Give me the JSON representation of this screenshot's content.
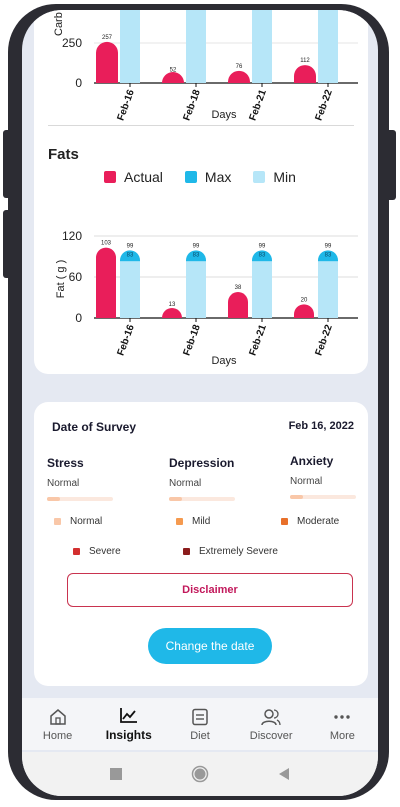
{
  "carb_chart": {
    "ylabel": "Carb ( g )",
    "xlabel": "Days",
    "yticks": [
      "250",
      "0"
    ],
    "categories": [
      "Feb-16",
      "Feb-18",
      "Feb-21",
      "Feb-22"
    ],
    "actual": [
      257,
      52,
      76,
      112
    ],
    "actual_labels": [
      "257",
      "52",
      "76",
      "112"
    ]
  },
  "fats": {
    "title": "Fats",
    "legend": {
      "actual": "Actual",
      "max": "Max",
      "min": "Min"
    },
    "colors": {
      "actual": "#e91e5a",
      "max": "#1fb8e8",
      "min": "#b6e6f8"
    }
  },
  "chart_data": [
    {
      "type": "bar",
      "title": "",
      "xlabel": "Days",
      "ylabel": "Carb ( g )",
      "categories": [
        "Feb-16",
        "Feb-18",
        "Feb-21",
        "Feb-22"
      ],
      "series": [
        {
          "name": "Actual",
          "values": [
            257,
            52,
            76,
            112
          ]
        }
      ]
    },
    {
      "type": "bar",
      "title": "Fats",
      "xlabel": "Days",
      "ylabel": "Fat ( g )",
      "ylim": [
        0,
        120
      ],
      "categories": [
        "Feb-16",
        "Feb-18",
        "Feb-21",
        "Feb-22"
      ],
      "series": [
        {
          "name": "Actual",
          "values": [
            103,
            13,
            38,
            20
          ]
        },
        {
          "name": "Max",
          "values": [
            99,
            99,
            99,
            99
          ]
        },
        {
          "name": "Min",
          "values": [
            83,
            83,
            83,
            83
          ]
        }
      ]
    }
  ],
  "fat_chart": {
    "ylabel": "Fat ( g )",
    "xlabel": "Days",
    "yticks": [
      "120",
      "60",
      "0"
    ],
    "categories": [
      "Feb-16",
      "Feb-18",
      "Feb-21",
      "Feb-22"
    ],
    "actual": [
      103,
      13,
      38,
      20
    ],
    "actual_labels": [
      "103",
      "13",
      "38",
      "20"
    ],
    "max_labels": [
      "99",
      "99",
      "99",
      "99"
    ],
    "min_labels": [
      "83",
      "83",
      "83",
      "83"
    ]
  },
  "survey": {
    "heading": "Date of Survey",
    "date": "Feb 16, 2022",
    "metrics": [
      {
        "name": "Stress",
        "value": "Normal",
        "level": 0.2
      },
      {
        "name": "Depression",
        "value": "Normal",
        "level": 0.2
      },
      {
        "name": "Anxiety",
        "value": "Normal",
        "level": 0.2
      }
    ],
    "key": [
      {
        "label": "Normal",
        "color": "#f9c7a8"
      },
      {
        "label": "Mild",
        "color": "#f59a4f"
      },
      {
        "label": "Moderate",
        "color": "#e8702a"
      },
      {
        "label": "Severe",
        "color": "#d32f2f"
      },
      {
        "label": "Extremely Severe",
        "color": "#8b1c1c"
      }
    ],
    "disclaimer": "Disclaimer",
    "change_date": "Change the date"
  },
  "tabs": [
    {
      "label": "Home",
      "icon": "home-icon"
    },
    {
      "label": "Insights",
      "icon": "insights-icon"
    },
    {
      "label": "Diet",
      "icon": "diet-icon"
    },
    {
      "label": "Discover",
      "icon": "discover-icon"
    },
    {
      "label": "More",
      "icon": "more-icon"
    }
  ]
}
